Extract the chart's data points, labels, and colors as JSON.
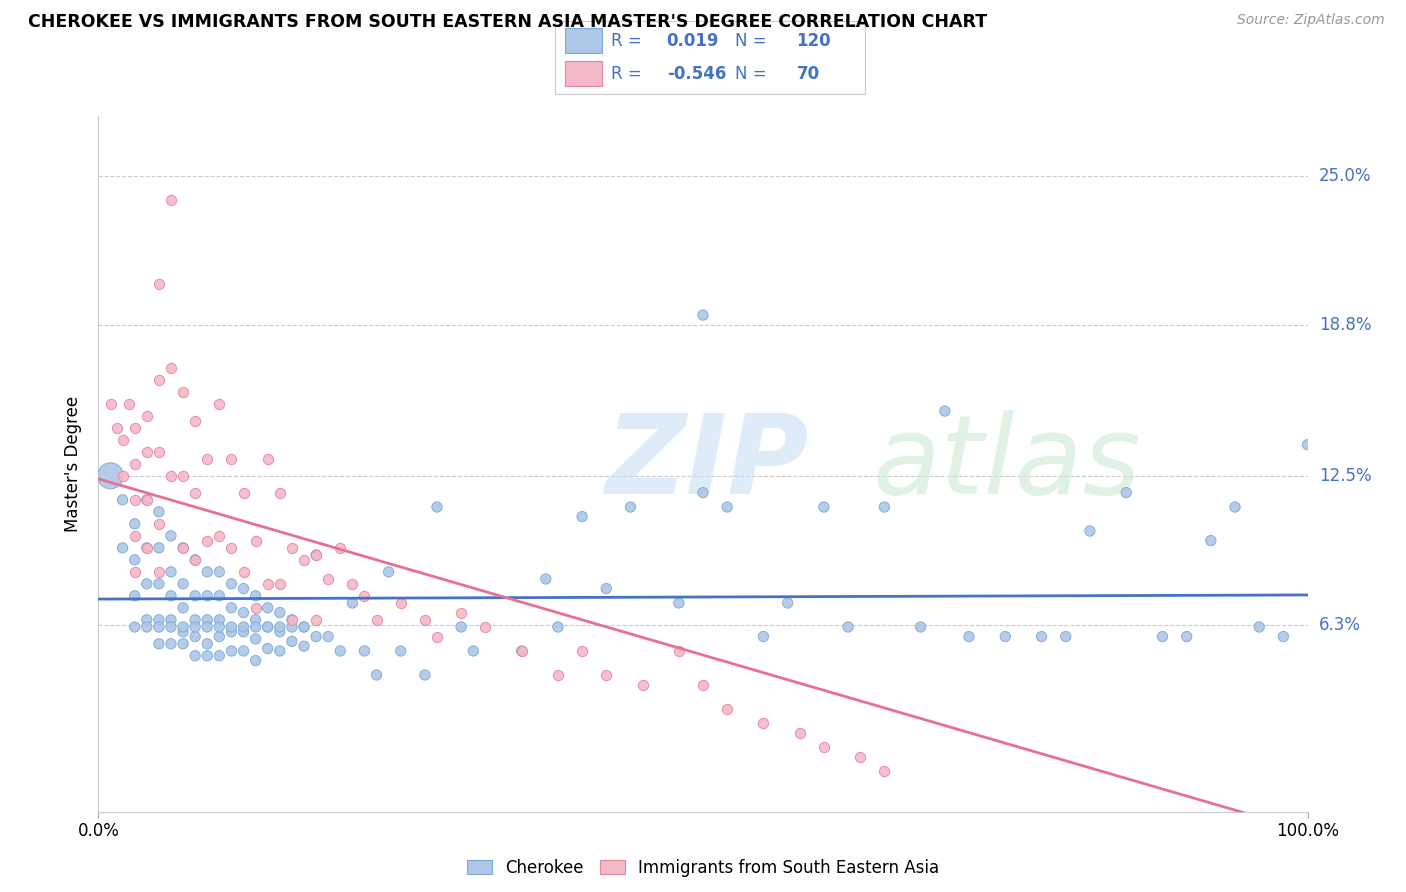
{
  "title": "CHEROKEE VS IMMIGRANTS FROM SOUTH EASTERN ASIA MASTER'S DEGREE CORRELATION CHART",
  "source": "Source: ZipAtlas.com",
  "ylabel": "Master's Degree",
  "ytick_vals": [
    0.063,
    0.125,
    0.188,
    0.25
  ],
  "ytick_labels": [
    "6.3%",
    "12.5%",
    "18.8%",
    "25.0%"
  ],
  "xtick_vals": [
    0.0,
    1.0
  ],
  "xtick_labels": [
    "0.0%",
    "100.0%"
  ],
  "xmin": 0.0,
  "xmax": 1.0,
  "ymin": -0.015,
  "ymax": 0.275,
  "blue_color": "#aec6e8",
  "blue_edge": "#7aaad4",
  "pink_color": "#f4b8c8",
  "pink_edge": "#e08898",
  "blue_line_color": "#4472c4",
  "pink_line_color": "#e87090",
  "blue_R": 0.019,
  "blue_N": 120,
  "pink_R": -0.546,
  "pink_N": 70,
  "legend_label_blue": "Cherokee",
  "legend_label_pink": "Immigrants from South Eastern Asia",
  "legend_text_color": "#4472c4",
  "blue_scatter_x": [
    0.01,
    0.02,
    0.02,
    0.03,
    0.03,
    0.03,
    0.04,
    0.04,
    0.04,
    0.04,
    0.05,
    0.05,
    0.05,
    0.05,
    0.05,
    0.06,
    0.06,
    0.06,
    0.06,
    0.06,
    0.07,
    0.07,
    0.07,
    0.07,
    0.07,
    0.08,
    0.08,
    0.08,
    0.08,
    0.08,
    0.09,
    0.09,
    0.09,
    0.09,
    0.09,
    0.1,
    0.1,
    0.1,
    0.1,
    0.1,
    0.11,
    0.11,
    0.11,
    0.11,
    0.12,
    0.12,
    0.12,
    0.12,
    0.13,
    0.13,
    0.13,
    0.13,
    0.14,
    0.14,
    0.14,
    0.15,
    0.15,
    0.15,
    0.16,
    0.16,
    0.17,
    0.17,
    0.18,
    0.18,
    0.19,
    0.2,
    0.21,
    0.22,
    0.23,
    0.24,
    0.25,
    0.27,
    0.28,
    0.3,
    0.31,
    0.35,
    0.37,
    0.38,
    0.4,
    0.42,
    0.44,
    0.48,
    0.5,
    0.5,
    0.52,
    0.55,
    0.57,
    0.6,
    0.62,
    0.65,
    0.68,
    0.7,
    0.72,
    0.75,
    0.78,
    0.8,
    0.82,
    0.85,
    0.88,
    0.9,
    0.92,
    0.94,
    0.96,
    0.98,
    1.0,
    0.03,
    0.04,
    0.05,
    0.06,
    0.07,
    0.08,
    0.09,
    0.1,
    0.11,
    0.12,
    0.13,
    0.14,
    0.15,
    0.16,
    0.17
  ],
  "blue_scatter_y": [
    0.125,
    0.115,
    0.095,
    0.105,
    0.09,
    0.075,
    0.115,
    0.095,
    0.08,
    0.065,
    0.11,
    0.095,
    0.08,
    0.065,
    0.055,
    0.1,
    0.085,
    0.075,
    0.065,
    0.055,
    0.095,
    0.08,
    0.07,
    0.06,
    0.055,
    0.09,
    0.075,
    0.065,
    0.058,
    0.05,
    0.085,
    0.075,
    0.065,
    0.055,
    0.05,
    0.085,
    0.075,
    0.065,
    0.058,
    0.05,
    0.08,
    0.07,
    0.06,
    0.052,
    0.078,
    0.068,
    0.06,
    0.052,
    0.075,
    0.065,
    0.057,
    0.048,
    0.07,
    0.062,
    0.053,
    0.068,
    0.06,
    0.052,
    0.065,
    0.056,
    0.062,
    0.054,
    0.092,
    0.058,
    0.058,
    0.052,
    0.072,
    0.052,
    0.042,
    0.085,
    0.052,
    0.042,
    0.112,
    0.062,
    0.052,
    0.052,
    0.082,
    0.062,
    0.108,
    0.078,
    0.112,
    0.072,
    0.192,
    0.118,
    0.112,
    0.058,
    0.072,
    0.112,
    0.062,
    0.112,
    0.062,
    0.152,
    0.058,
    0.058,
    0.058,
    0.058,
    0.102,
    0.118,
    0.058,
    0.058,
    0.098,
    0.112,
    0.062,
    0.058,
    0.138,
    0.062,
    0.062,
    0.062,
    0.062,
    0.062,
    0.062,
    0.062,
    0.062,
    0.062,
    0.062,
    0.062,
    0.062,
    0.062,
    0.062,
    0.062
  ],
  "pink_scatter_x": [
    0.01,
    0.015,
    0.02,
    0.02,
    0.025,
    0.03,
    0.03,
    0.03,
    0.03,
    0.03,
    0.04,
    0.04,
    0.04,
    0.04,
    0.05,
    0.05,
    0.05,
    0.05,
    0.05,
    0.06,
    0.06,
    0.06,
    0.07,
    0.07,
    0.07,
    0.08,
    0.08,
    0.08,
    0.09,
    0.09,
    0.1,
    0.1,
    0.11,
    0.11,
    0.12,
    0.12,
    0.13,
    0.13,
    0.14,
    0.14,
    0.15,
    0.15,
    0.16,
    0.16,
    0.17,
    0.18,
    0.18,
    0.19,
    0.2,
    0.21,
    0.22,
    0.23,
    0.25,
    0.27,
    0.28,
    0.3,
    0.32,
    0.35,
    0.38,
    0.4,
    0.42,
    0.45,
    0.48,
    0.5,
    0.52,
    0.55,
    0.58,
    0.6,
    0.63,
    0.65
  ],
  "pink_scatter_y": [
    0.155,
    0.145,
    0.14,
    0.125,
    0.155,
    0.145,
    0.13,
    0.115,
    0.1,
    0.085,
    0.15,
    0.135,
    0.115,
    0.095,
    0.205,
    0.165,
    0.135,
    0.105,
    0.085,
    0.24,
    0.17,
    0.125,
    0.16,
    0.125,
    0.095,
    0.148,
    0.118,
    0.09,
    0.132,
    0.098,
    0.155,
    0.1,
    0.132,
    0.095,
    0.118,
    0.085,
    0.098,
    0.07,
    0.132,
    0.08,
    0.118,
    0.08,
    0.095,
    0.065,
    0.09,
    0.092,
    0.065,
    0.082,
    0.095,
    0.08,
    0.075,
    0.065,
    0.072,
    0.065,
    0.058,
    0.068,
    0.062,
    0.052,
    0.042,
    0.052,
    0.042,
    0.038,
    0.052,
    0.038,
    0.028,
    0.022,
    0.018,
    0.012,
    0.008,
    0.002
  ]
}
